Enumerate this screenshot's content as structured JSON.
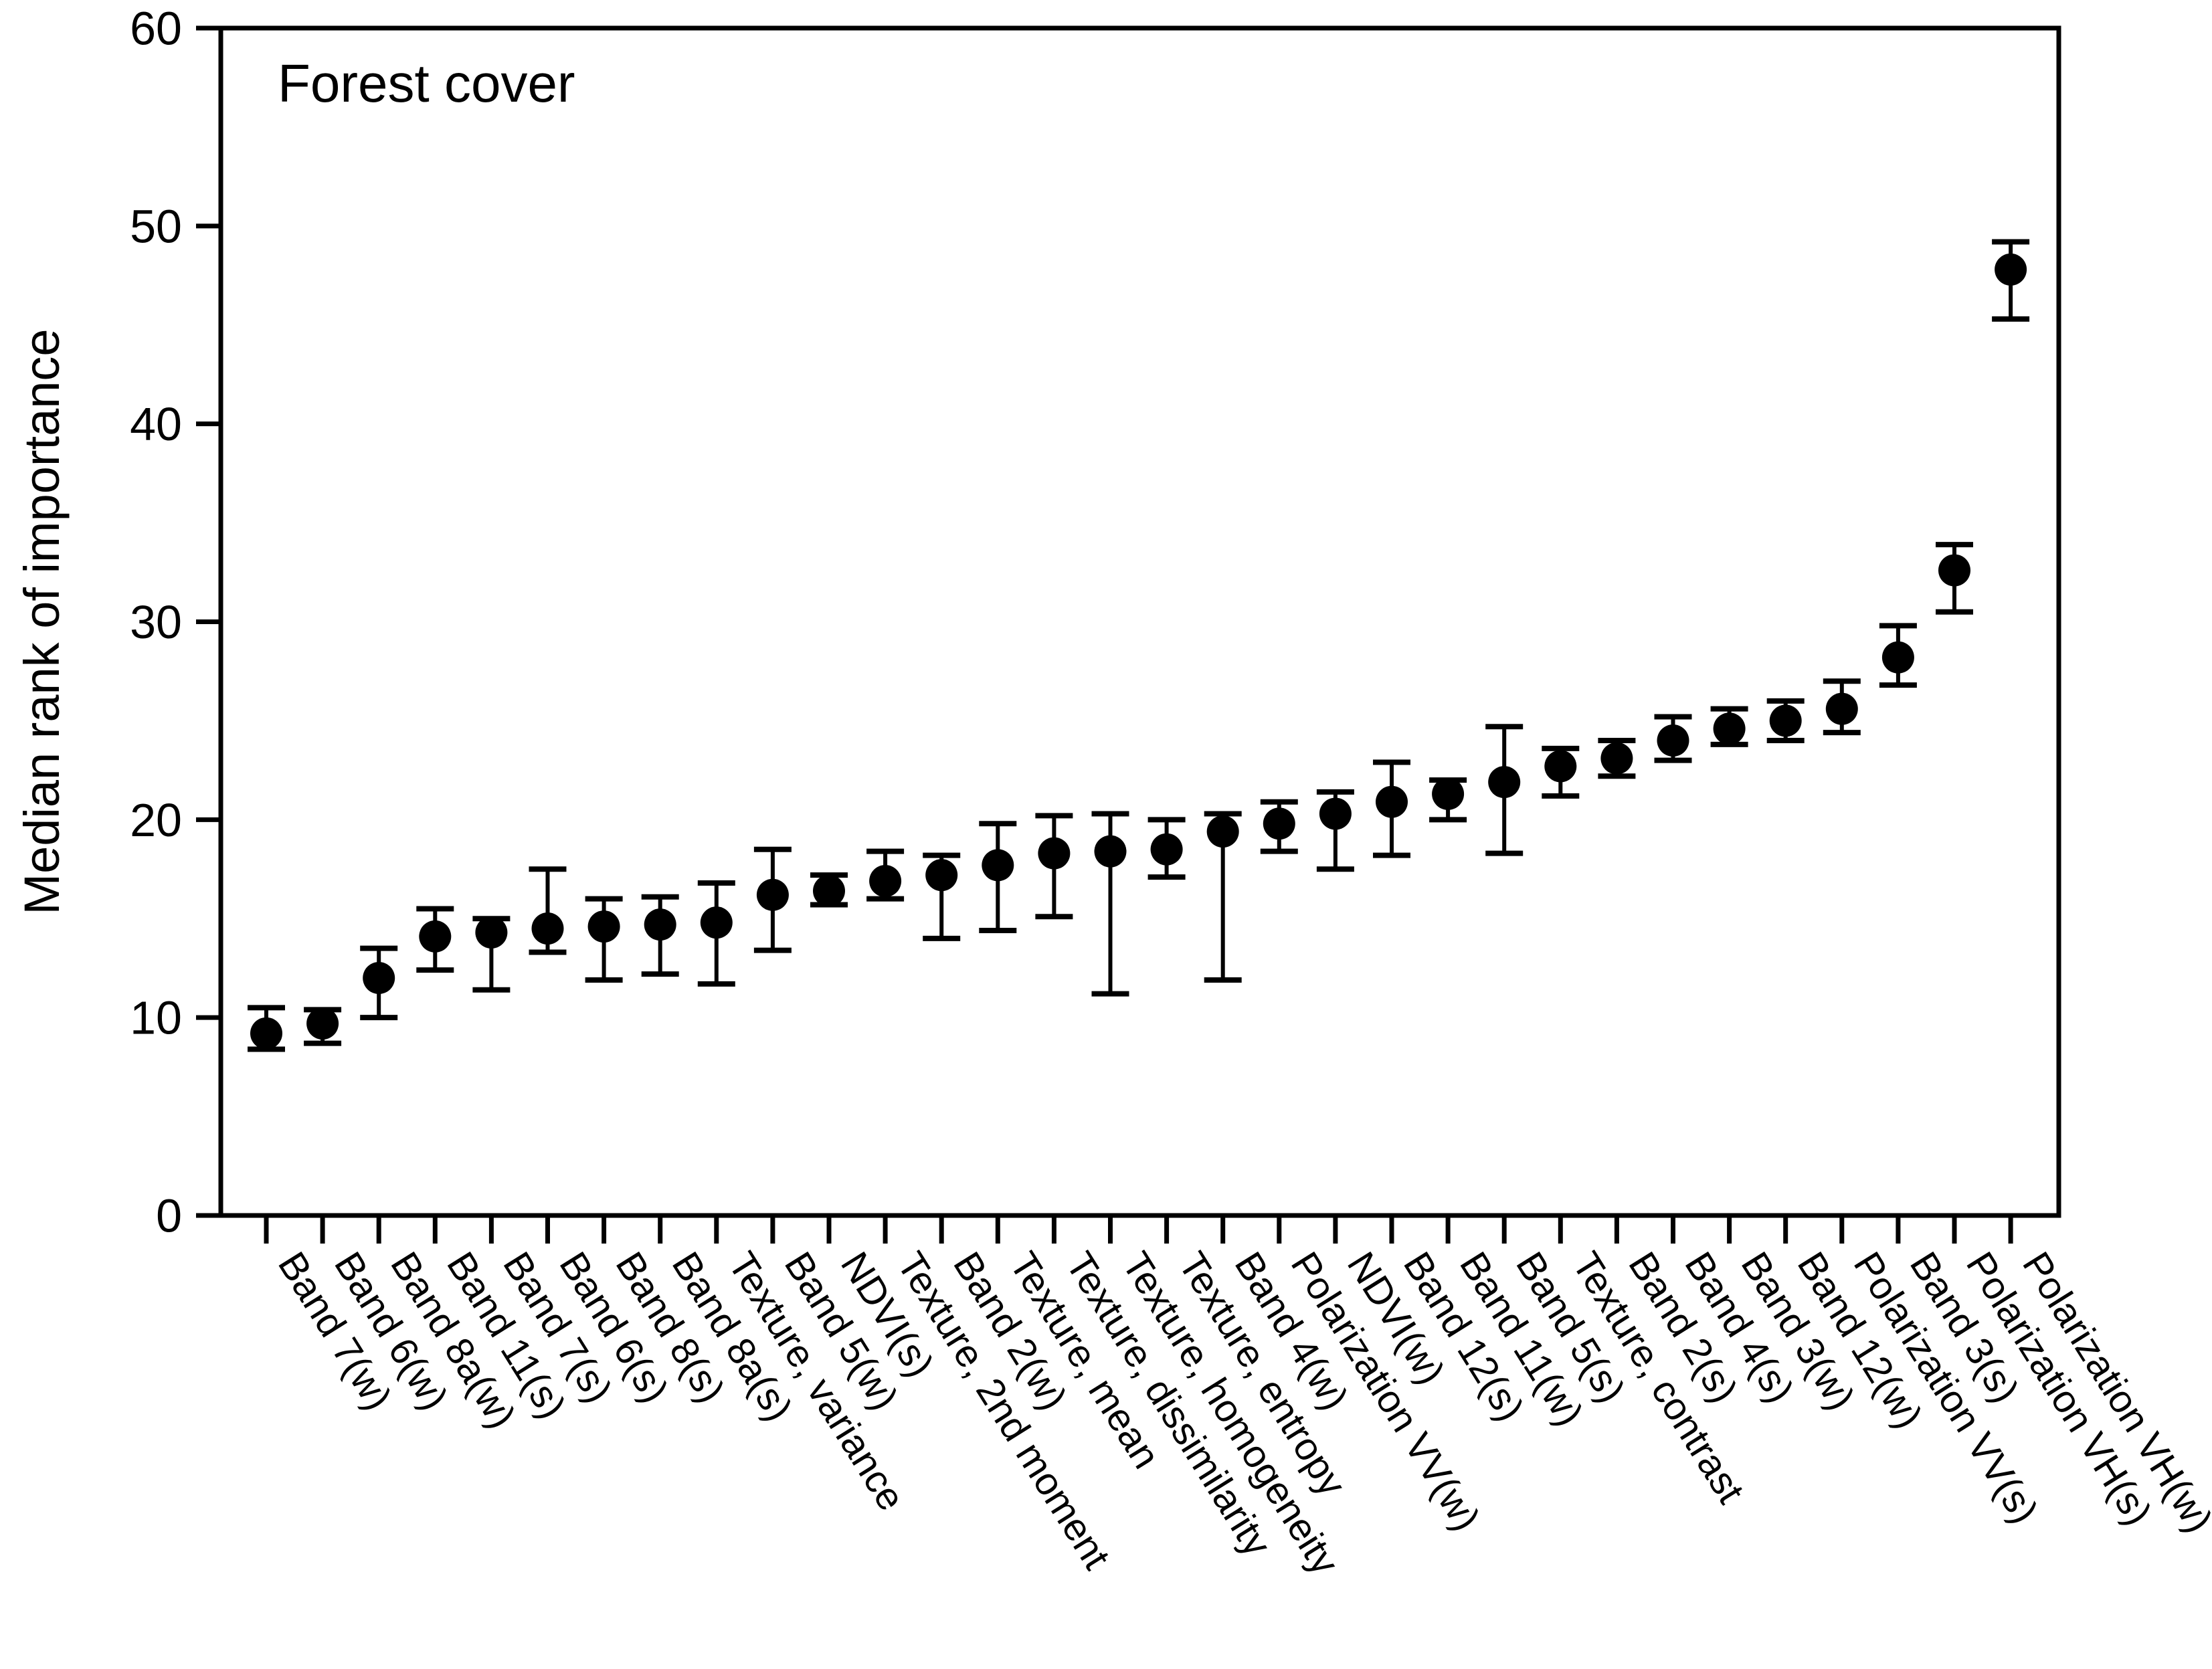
{
  "chart_data": {
    "type": "scatter",
    "title": "Forest cover",
    "xlabel": "",
    "ylabel": "Median rank of importance",
    "ylim": [
      0,
      60
    ],
    "yticks": [
      0,
      10,
      20,
      30,
      40,
      50,
      60
    ],
    "grid": false,
    "legend_position": "none",
    "marker": {
      "shape": "filled-circle",
      "color": "#000000"
    },
    "error_bars": {
      "style": "capped",
      "color": "#000000"
    },
    "points": [
      {
        "label": "Band 7(w)",
        "value": 9.2,
        "err_low": 8.4,
        "err_high": 10.5
      },
      {
        "label": "Band 6(w)",
        "value": 9.7,
        "err_low": 8.7,
        "err_high": 10.4
      },
      {
        "label": "Band 8a(w)",
        "value": 12.0,
        "err_low": 10.0,
        "err_high": 13.5
      },
      {
        "label": "Band 11(s)",
        "value": 14.1,
        "err_low": 12.4,
        "err_high": 15.5
      },
      {
        "label": "Band 7(s)",
        "value": 14.3,
        "err_low": 11.4,
        "err_high": 15.0
      },
      {
        "label": "Band 6(s)",
        "value": 14.5,
        "err_low": 13.3,
        "err_high": 17.5
      },
      {
        "label": "Band 8(s)",
        "value": 14.6,
        "err_low": 11.9,
        "err_high": 16.0
      },
      {
        "label": "Band 8a(s)",
        "value": 14.7,
        "err_low": 12.2,
        "err_high": 16.1
      },
      {
        "label": "Texture, variance",
        "value": 14.8,
        "err_low": 11.7,
        "err_high": 16.8
      },
      {
        "label": "Band 5(w)",
        "value": 16.2,
        "err_low": 13.4,
        "err_high": 18.5
      },
      {
        "label": "NDVI(s)",
        "value": 16.4,
        "err_low": 15.7,
        "err_high": 17.2
      },
      {
        "label": "Texture, 2nd moment",
        "value": 16.9,
        "err_low": 16.0,
        "err_high": 18.4
      },
      {
        "label": "Band 2(w)",
        "value": 17.2,
        "err_low": 14.0,
        "err_high": 18.2
      },
      {
        "label": "Texture, mean",
        "value": 17.7,
        "err_low": 14.4,
        "err_high": 19.8
      },
      {
        "label": "Texture, dissimilarity",
        "value": 18.3,
        "err_low": 15.1,
        "err_high": 20.2
      },
      {
        "label": "Texture, homogeneity",
        "value": 18.4,
        "err_low": 11.2,
        "err_high": 20.3
      },
      {
        "label": "Texture, entropy",
        "value": 18.5,
        "err_low": 17.1,
        "err_high": 20.0
      },
      {
        "label": "Band 4(w)",
        "value": 19.4,
        "err_low": 11.9,
        "err_high": 20.3
      },
      {
        "label": "Polarization VV(w)",
        "value": 19.8,
        "err_low": 18.4,
        "err_high": 20.9
      },
      {
        "label": "NDVI(w)",
        "value": 20.3,
        "err_low": 17.5,
        "err_high": 21.4
      },
      {
        "label": "Band 12(s)",
        "value": 20.9,
        "err_low": 18.2,
        "err_high": 22.9
      },
      {
        "label": "Band 11(w)",
        "value": 21.3,
        "err_low": 20.0,
        "err_high": 22.0
      },
      {
        "label": "Band 5(s)",
        "value": 21.9,
        "err_low": 18.3,
        "err_high": 24.7
      },
      {
        "label": "Texture, contrast",
        "value": 22.7,
        "err_low": 21.2,
        "err_high": 23.6
      },
      {
        "label": "Band 2(s)",
        "value": 23.1,
        "err_low": 22.2,
        "err_high": 24.0
      },
      {
        "label": "Band 4(s)",
        "value": 24.0,
        "err_low": 23.0,
        "err_high": 25.2
      },
      {
        "label": "Band 3(w)",
        "value": 24.6,
        "err_low": 23.8,
        "err_high": 25.6
      },
      {
        "label": "Band 12(w)",
        "value": 25.0,
        "err_low": 24.0,
        "err_high": 26.0
      },
      {
        "label": "Polarization VV(s)",
        "value": 25.6,
        "err_low": 24.4,
        "err_high": 27.0
      },
      {
        "label": "Band 3(s)",
        "value": 28.2,
        "err_low": 26.8,
        "err_high": 29.8
      },
      {
        "label": "Polarization VH(s)",
        "value": 32.6,
        "err_low": 30.5,
        "err_high": 33.9
      },
      {
        "label": "Polarization VH(w)",
        "value": 47.8,
        "err_low": 45.3,
        "err_high": 49.2
      }
    ]
  }
}
